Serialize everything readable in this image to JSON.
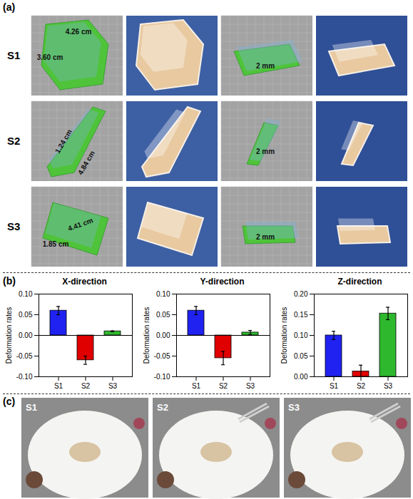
{
  "panel_labels": [
    "(a)",
    "(b)",
    "(c)"
  ],
  "panel_a": {
    "rows": [
      {
        "label": "S1",
        "dimensions": [
          "4.26 cm",
          "3.60 cm"
        ],
        "thickness": "2 mm"
      },
      {
        "label": "S2",
        "dimensions": [
          "1.24 cm",
          "4.84 cm"
        ],
        "thickness": "2 mm"
      },
      {
        "label": "S3",
        "dimensions": [
          "4.41 cm",
          "1.85 cm"
        ],
        "thickness": "2 mm"
      }
    ]
  },
  "chart_data": [
    {
      "type": "bar",
      "title": "X-direction",
      "y_label": "Deformation rates",
      "categories": [
        "S1",
        "S2",
        "S3"
      ],
      "values": [
        0.06,
        -0.06,
        0.01
      ],
      "errors": [
        0.01,
        0.01,
        0.001
      ],
      "colors": [
        "#1f22f0",
        "#e00000",
        "#2eb82e"
      ],
      "ylim": [
        -0.1,
        0.1
      ],
      "yticks": [
        {
          "value": -0.1,
          "label": "-0.10"
        },
        {
          "value": -0.05,
          "label": "-0.05"
        },
        {
          "value": 0,
          "label": "0.00"
        },
        {
          "value": 0.05,
          "label": "0.05"
        },
        {
          "value": 0.1,
          "label": "0.10"
        }
      ]
    },
    {
      "type": "bar",
      "title": "Y-direction",
      "y_label": "Deformation rates",
      "categories": [
        "S1",
        "S2",
        "S3"
      ],
      "values": [
        0.06,
        -0.055,
        0.007
      ],
      "errors": [
        0.01,
        0.016,
        0.005
      ],
      "colors": [
        "#1f22f0",
        "#e00000",
        "#2eb82e"
      ],
      "ylim": [
        -0.1,
        0.1
      ],
      "yticks": [
        {
          "value": -0.1,
          "label": "-0.10"
        },
        {
          "value": -0.05,
          "label": "-0.05"
        },
        {
          "value": 0,
          "label": "0.00"
        },
        {
          "value": 0.05,
          "label": "0.05"
        },
        {
          "value": 0.1,
          "label": "0.10"
        }
      ]
    },
    {
      "type": "bar",
      "title": "Z-direction",
      "y_label": "Deformation rates",
      "categories": [
        "S1",
        "S2",
        "S3"
      ],
      "values": [
        0.1,
        0.013,
        0.153
      ],
      "errors": [
        0.01,
        0.015,
        0.015
      ],
      "colors": [
        "#1f22f0",
        "#e00000",
        "#2eb82e"
      ],
      "ylim": [
        0,
        0.2
      ],
      "yticks": [
        {
          "value": 0,
          "label": "0.00"
        },
        {
          "value": 0.05,
          "label": "0.05"
        },
        {
          "value": 0.1,
          "label": "0.10"
        },
        {
          "value": 0.15,
          "label": "0.15"
        },
        {
          "value": 0.2,
          "label": "0.20"
        }
      ]
    }
  ],
  "panel_c": {
    "labels": [
      "S1",
      "S2",
      "S3"
    ]
  }
}
